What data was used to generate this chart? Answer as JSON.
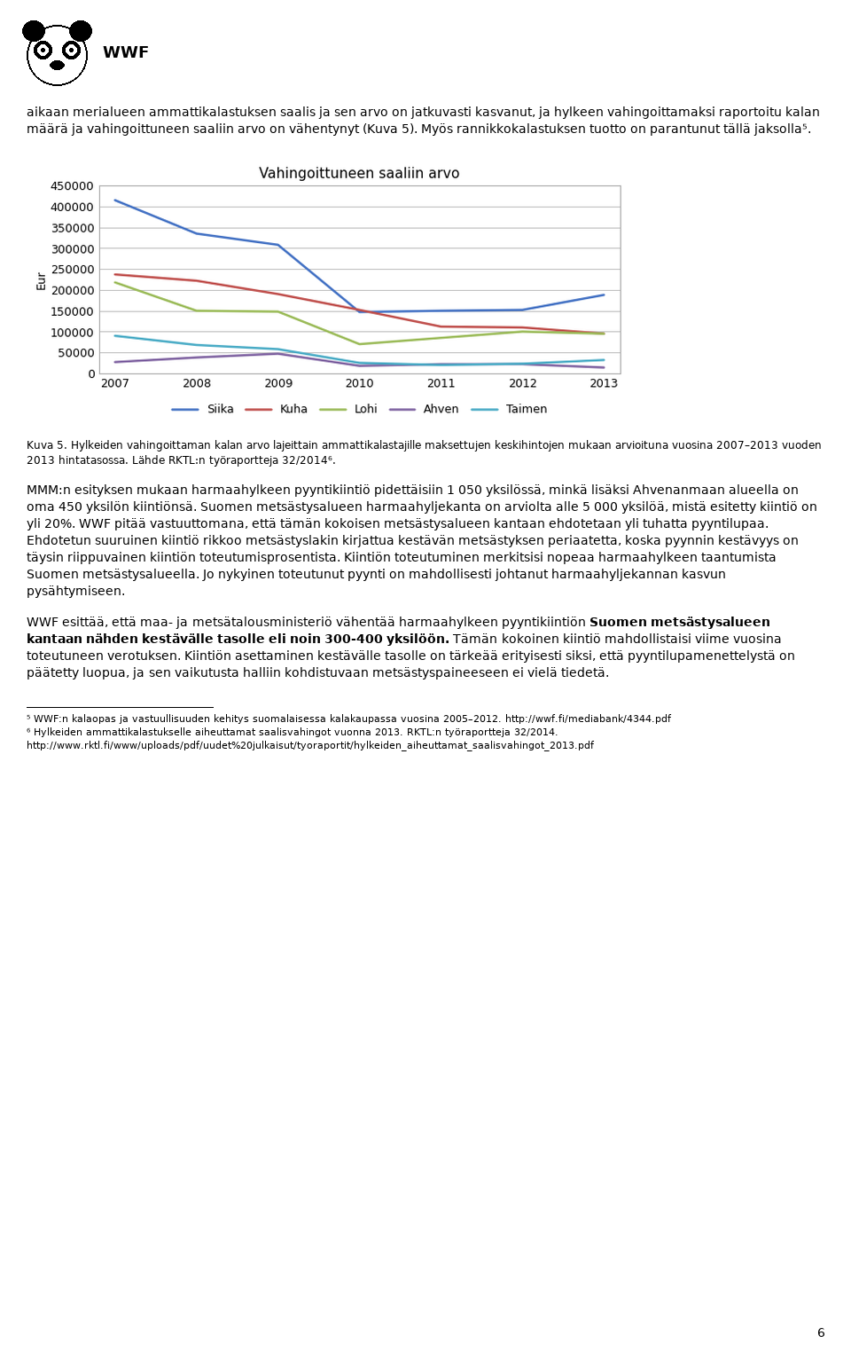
{
  "title": "Vahingoittuneen saaliin arvo",
  "ylabel": "Eur",
  "years": [
    2007,
    2008,
    2009,
    2010,
    2011,
    2012,
    2013
  ],
  "series_order": [
    "Siika",
    "Kuha",
    "Lohi",
    "Ahven",
    "Taimen"
  ],
  "series": {
    "Siika": [
      415000,
      335000,
      308000,
      147000,
      150000,
      152000,
      188000
    ],
    "Kuha": [
      237000,
      222000,
      190000,
      152000,
      112000,
      110000,
      95000
    ],
    "Lohi": [
      218000,
      150000,
      148000,
      70000,
      85000,
      100000,
      95000
    ],
    "Ahven": [
      27000,
      38000,
      47000,
      18000,
      22000,
      22000,
      14000
    ],
    "Taimen": [
      90000,
      68000,
      58000,
      25000,
      20000,
      23000,
      32000
    ]
  },
  "colors": {
    "Siika": "#4472C4",
    "Kuha": "#C0504D",
    "Lohi": "#9BBB59",
    "Ahven": "#8064A2",
    "Taimen": "#4BACC6"
  },
  "ylim": [
    0,
    450000
  ],
  "yticks": [
    0,
    50000,
    100000,
    150000,
    200000,
    250000,
    300000,
    350000,
    400000,
    450000
  ],
  "background_color": "#FFFFFF",
  "plot_bg_color": "#FFFFFF",
  "grid_color": "#C0C0C0",
  "title_fontsize": 11,
  "axis_fontsize": 9,
  "legend_fontsize": 9,
  "line_width": 1.8,
  "chart_border_color": "#AAAAAA",
  "figsize": [
    6.5,
    3.4
  ]
}
